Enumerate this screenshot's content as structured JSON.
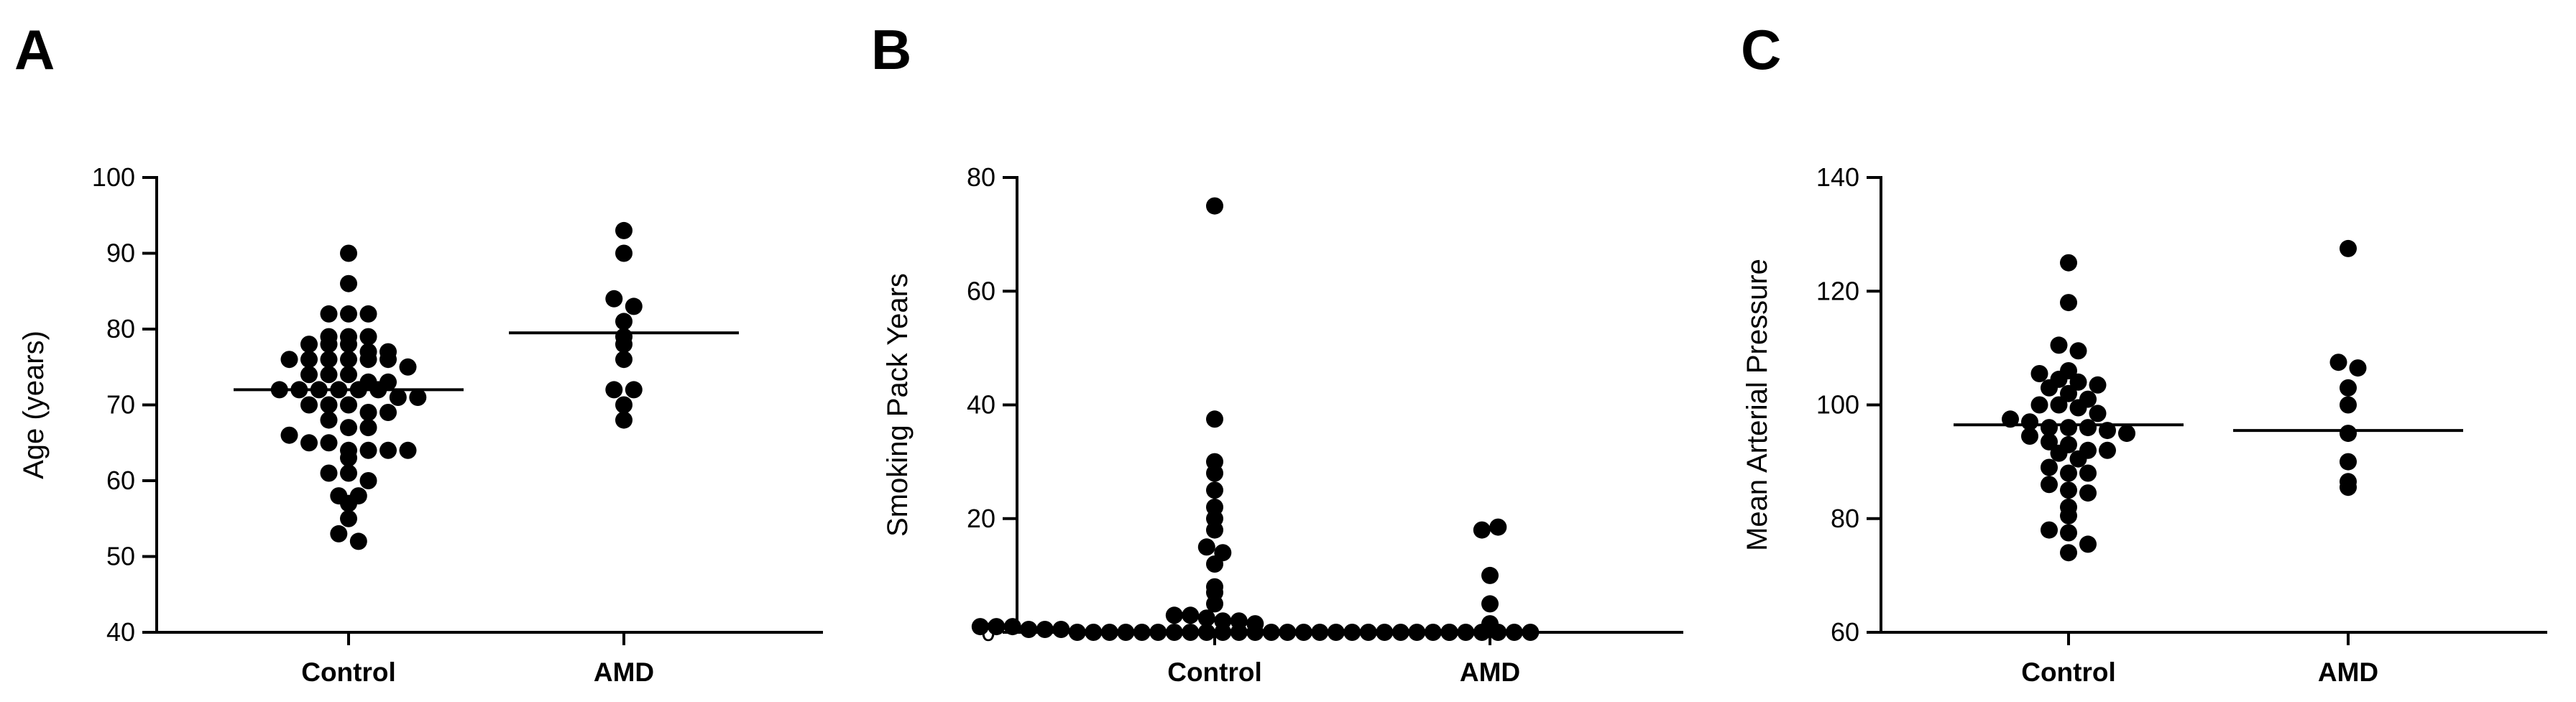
{
  "chart_data": [
    {
      "panel_label": "A",
      "type": "scatter",
      "ylabel": "Age (years)",
      "xlabel": "",
      "ylim": [
        40,
        100
      ],
      "yticks": [
        40,
        50,
        60,
        70,
        80,
        90,
        100
      ],
      "categories": [
        "Control",
        "AMD"
      ],
      "groups": [
        {
          "name": "Control",
          "values": [
            90,
            86,
            82,
            82,
            82,
            79,
            79,
            79,
            78,
            78,
            78,
            77,
            77,
            76,
            76,
            76,
            76,
            76,
            76,
            75,
            74,
            74,
            74,
            73,
            73,
            72,
            72,
            72,
            72,
            72,
            72,
            71,
            71,
            70,
            70,
            70,
            69,
            69,
            68,
            67,
            67,
            66,
            65,
            65,
            64,
            64,
            64,
            64,
            63,
            61,
            61,
            60,
            58,
            58,
            57,
            55,
            53,
            52
          ],
          "mean": 72
        },
        {
          "name": "AMD",
          "values": [
            93,
            90,
            84,
            83,
            81,
            79,
            78,
            76,
            72,
            72,
            70,
            68
          ],
          "mean": 79.5
        }
      ]
    },
    {
      "panel_label": "B",
      "type": "scatter",
      "ylabel": "Smoking Pack Years",
      "xlabel": "",
      "ylim": [
        0,
        80
      ],
      "yticks": [
        0,
        20,
        40,
        60,
        80
      ],
      "categories": [
        "Control",
        "AMD"
      ],
      "groups": [
        {
          "name": "Control",
          "values": [
            75,
            37.5,
            30,
            28,
            25,
            22,
            20,
            18,
            15,
            14,
            12,
            8,
            7,
            5,
            3,
            3,
            2.5,
            2,
            2,
            1.5,
            1,
            1,
            1,
            0.5,
            0.5,
            0.5,
            0,
            0,
            0,
            0,
            0,
            0,
            0,
            0,
            0,
            0,
            0,
            0,
            0,
            0,
            0,
            0,
            0,
            0,
            0,
            0,
            0,
            0,
            0,
            0
          ],
          "mean": null
        },
        {
          "name": "AMD",
          "values": [
            18,
            18.5,
            10,
            5,
            1.5,
            0,
            0,
            0,
            0,
            0,
            0
          ],
          "mean": null
        }
      ]
    },
    {
      "panel_label": "C",
      "type": "scatter",
      "ylabel": "Mean Arterial Pressure",
      "xlabel": "",
      "ylim": [
        60,
        140
      ],
      "yticks": [
        60,
        80,
        100,
        120,
        140
      ],
      "categories": [
        "Control",
        "AMD"
      ],
      "groups": [
        {
          "name": "Control",
          "values": [
            125,
            118,
            110.5,
            109.5,
            106,
            105.5,
            104.5,
            104,
            103.5,
            103,
            102,
            101,
            100,
            100,
            99.5,
            98.5,
            97.5,
            97,
            96,
            96,
            96,
            95.5,
            95,
            94.5,
            93.5,
            93,
            92,
            92,
            91.5,
            90.5,
            89,
            88,
            88,
            86,
            85,
            84.5,
            82,
            80.5,
            78,
            77.5,
            75.5,
            74
          ],
          "mean": 96.5
        },
        {
          "name": "AMD",
          "values": [
            127.5,
            107.5,
            106.5,
            103,
            100,
            95,
            90,
            86.5,
            85.5
          ],
          "mean": 95.5
        }
      ]
    }
  ]
}
